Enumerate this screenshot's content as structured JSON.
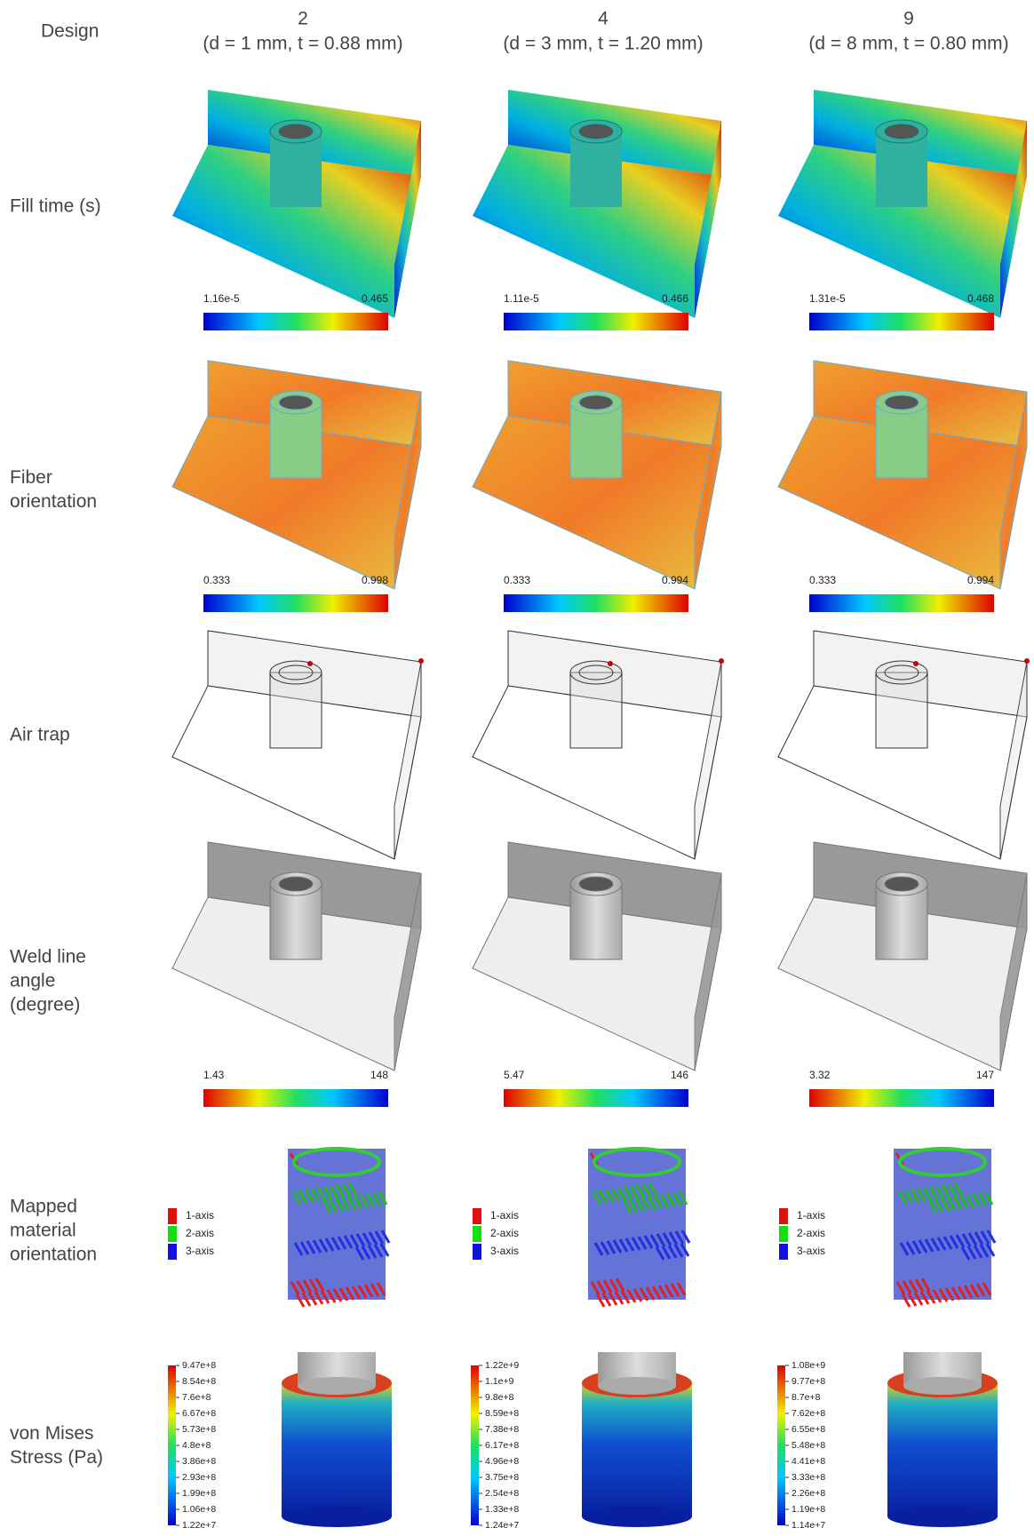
{
  "header": {
    "label": "Design"
  },
  "columns": [
    {
      "design": "2",
      "parameters": "(d = 1 mm, t = 0.88 mm)"
    },
    {
      "design": "4",
      "parameters": "(d = 3 mm, t = 1.20 mm)"
    },
    {
      "design": "9",
      "parameters": "(d = 8 mm, t = 0.80 mm)"
    }
  ],
  "rows": [
    {
      "lines": [
        "Fill time (s)"
      ]
    },
    {
      "lines": [
        "Fiber",
        "orientation"
      ]
    },
    {
      "lines": [
        "Air trap"
      ]
    },
    {
      "lines": [
        "Weld line",
        "angle",
        "(degree)"
      ]
    },
    {
      "lines": [
        "Mapped",
        "material",
        "orientation"
      ]
    },
    {
      "lines": [
        "von Mises",
        "Stress (Pa)"
      ]
    }
  ],
  "fill_time": [
    {
      "min": "1.16e-5",
      "max": "0.465"
    },
    {
      "min": "1.11e-5",
      "max": "0.466"
    },
    {
      "min": "1.31e-5",
      "max": "0.468"
    }
  ],
  "fiber_orientation": [
    {
      "min": "0.333",
      "max": "0.998"
    },
    {
      "min": "0.333",
      "max": "0.994"
    },
    {
      "min": "0.333",
      "max": "0.994"
    }
  ],
  "weld_line_angle": [
    {
      "min": "1.43",
      "max": "148"
    },
    {
      "min": "5.47",
      "max": "146"
    },
    {
      "min": "3.32",
      "max": "147"
    }
  ],
  "material_orientation_legend": [
    "1-axis",
    "2-axis",
    "3-axis"
  ],
  "von_mises_scales": [
    [
      "9.47e+8",
      "8.54e+8",
      "7.6e+8",
      "6.67e+8",
      "5.73e+8",
      "4.8e+8",
      "3.86e+8",
      "2.93e+8",
      "1.99e+8",
      "1.06e+8",
      "1.22e+7"
    ],
    [
      "1.22e+9",
      "1.1e+9",
      "9.8e+8",
      "8.59e+8",
      "7.38e+8",
      "6.17e+8",
      "4.96e+8",
      "3.75e+8",
      "2.54e+8",
      "1.33e+8",
      "1.24e+7"
    ],
    [
      "1.08e+9",
      "9.77e+8",
      "8.7e+8",
      "7.62e+8",
      "6.55e+8",
      "5.48e+8",
      "4.41e+8",
      "3.33e+8",
      "2.26e+8",
      "1.19e+8",
      "1.14e+7"
    ]
  ]
}
